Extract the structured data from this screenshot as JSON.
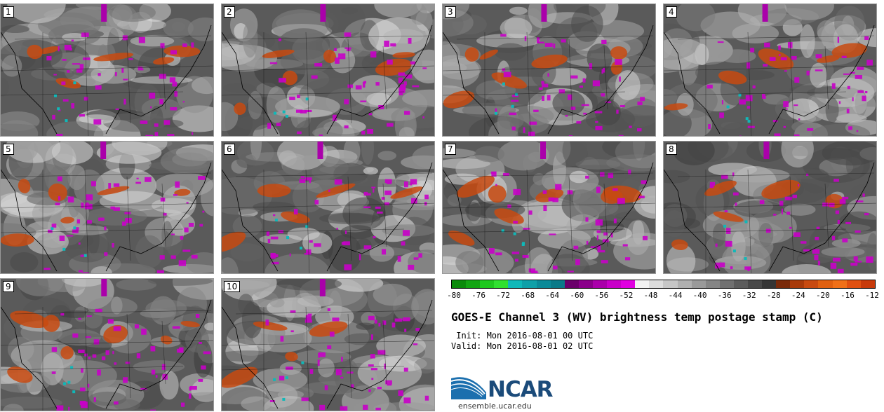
{
  "panels": [
    {
      "label": "1"
    },
    {
      "label": "2"
    },
    {
      "label": "3"
    },
    {
      "label": "4"
    },
    {
      "label": "5"
    },
    {
      "label": "6"
    },
    {
      "label": "7"
    },
    {
      "label": "8"
    },
    {
      "label": "9"
    },
    {
      "label": "10"
    }
  ],
  "colorbar": {
    "tick_labels": [
      "-80",
      "-76",
      "-72",
      "-68",
      "-64",
      "-60",
      "-56",
      "-52",
      "-48",
      "-44",
      "-40",
      "-36",
      "-32",
      "-28",
      "-24",
      "-20",
      "-16",
      "-12"
    ],
    "colors": [
      "#0a8a0a",
      "#12a512",
      "#1ec81e",
      "#30e030",
      "#10b8b8",
      "#0fa0a8",
      "#0b8a98",
      "#0a7a88",
      "#6a006a",
      "#8a008a",
      "#aa00aa",
      "#c800c8",
      "#e000e0",
      "#f2f2f2",
      "#dcdcdc",
      "#c6c6c6",
      "#b0b0b0",
      "#9a9a9a",
      "#858585",
      "#707070",
      "#5c5c5c",
      "#484848",
      "#353535",
      "#7a2a0a",
      "#a83a0a",
      "#c84a10",
      "#e06010",
      "#f07018",
      "#e05010",
      "#c83a0a"
    ]
  },
  "title": "GOES-E Channel 3 (WV) brightness temp postage stamp (C)",
  "init": " Init: Mon 2016-08-01 00 UTC",
  "valid": "Valid: Mon 2016-08-01 02 UTC",
  "logo": {
    "name": "NCAR",
    "url": "ensemble.ucar.edu"
  }
}
